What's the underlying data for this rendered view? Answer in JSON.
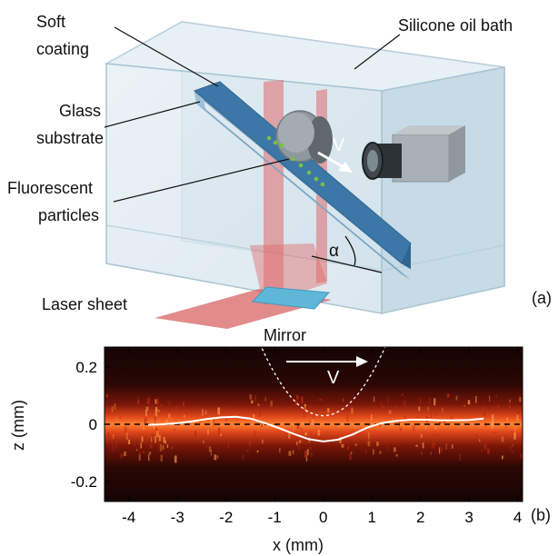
{
  "schematic": {
    "labels": {
      "soft_coating_line1": "Soft",
      "soft_coating_line2": "coating",
      "silicone_oil_bath": "Silicone oil bath",
      "glass_line1": "Glass",
      "glass_line2": "substrate",
      "fluorescent_line1": "Fluorescent",
      "fluorescent_line2": "particles",
      "laser_sheet": "Laser sheet",
      "mirror": "Mirror",
      "velocity": "V",
      "angle": "α"
    },
    "panel_tag": "(a)"
  },
  "plot": {
    "panel_tag": "(b)",
    "velocity_label": "V",
    "colors": {
      "profile": "#ffffff",
      "sphere_outline": "#ffffff",
      "reference_line": "#000000",
      "glow_core": "#ff7a2a",
      "background": "#150503"
    }
  },
  "chart_data": {
    "type": "line",
    "xlabel": "x (mm)",
    "ylabel": "z (mm)",
    "xlim": [
      -4.5,
      4.1
    ],
    "ylim": [
      -0.27,
      0.27
    ],
    "x_ticks": [
      "-4",
      "-3",
      "-2",
      "-1",
      "0",
      "1",
      "2",
      "3",
      "4"
    ],
    "y_ticks": [
      "0.2",
      "0",
      "-0.2"
    ],
    "series": [
      {
        "x": [
          -3.6,
          -3.3,
          -3.0,
          -2.7,
          -2.4,
          -2.1,
          -1.8,
          -1.5,
          -1.2,
          -0.9,
          -0.6,
          -0.3,
          0.0,
          0.3,
          0.6,
          0.9,
          1.2,
          1.5,
          1.8,
          2.1,
          2.4,
          2.7,
          3.0,
          3.3
        ],
        "y": [
          -0.002,
          0.0,
          0.004,
          0.01,
          0.018,
          0.024,
          0.026,
          0.02,
          0.004,
          -0.014,
          -0.034,
          -0.052,
          -0.06,
          -0.054,
          -0.036,
          -0.012,
          0.004,
          0.012,
          0.016,
          0.016,
          0.014,
          0.014,
          0.015,
          0.02
        ]
      }
    ]
  }
}
